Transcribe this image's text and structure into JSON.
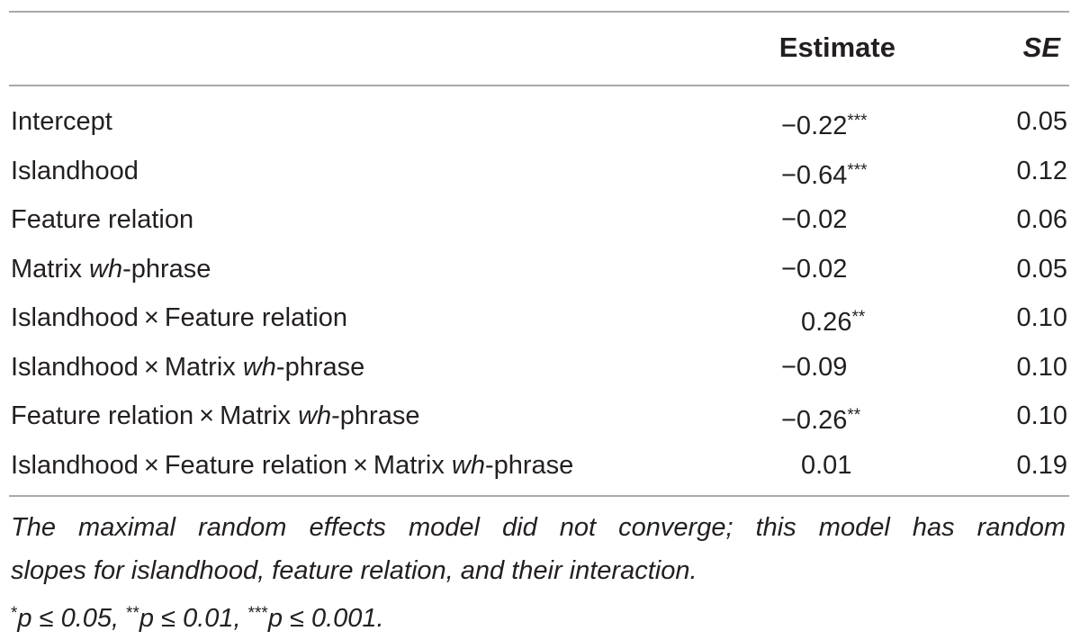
{
  "table": {
    "headers": {
      "estimate": "Estimate",
      "se": "SE"
    },
    "rows": [
      {
        "label_parts": [
          "Intercept"
        ],
        "estimate": "−0.22",
        "stars": "***",
        "se": "0.05"
      },
      {
        "label_parts": [
          "Islandhood"
        ],
        "estimate": "−0.64",
        "stars": "***",
        "se": "0.12"
      },
      {
        "label_parts": [
          "Feature relation"
        ],
        "estimate": "−0.02",
        "stars": "",
        "se": "0.06"
      },
      {
        "label_parts": [
          "Matrix ",
          "wh",
          "-phrase"
        ],
        "estimate": "−0.02",
        "stars": "",
        "se": "0.05"
      },
      {
        "label_parts": [
          "Islandhood",
          "×",
          "Feature relation"
        ],
        "estimate": "0.26",
        "stars": "**",
        "se": "0.10"
      },
      {
        "label_parts": [
          "Islandhood",
          "×",
          "Matrix ",
          "wh",
          "-phrase"
        ],
        "estimate": "−0.09",
        "stars": "",
        "se": "0.10"
      },
      {
        "label_parts": [
          "Feature relation",
          "×",
          "Matrix ",
          "wh",
          "-phrase"
        ],
        "estimate": "−0.26",
        "stars": "**",
        "se": "0.10"
      },
      {
        "label_parts": [
          "Islandhood",
          "×",
          "Feature relation",
          "×",
          "Matrix ",
          "wh",
          "-phrase"
        ],
        "estimate": "0.01",
        "stars": "",
        "se": "0.19"
      }
    ]
  },
  "notes": {
    "line1": "The maximal random effects model did not converge; this model has random",
    "line2": "slopes for islandhood, feature relation, and their interaction.",
    "sig": [
      {
        "stars": "*",
        "text": "p ≤ 0.05, "
      },
      {
        "stars": "**",
        "text": "p ≤ 0.01, "
      },
      {
        "stars": "***",
        "text": "p ≤ 0.001."
      }
    ]
  }
}
